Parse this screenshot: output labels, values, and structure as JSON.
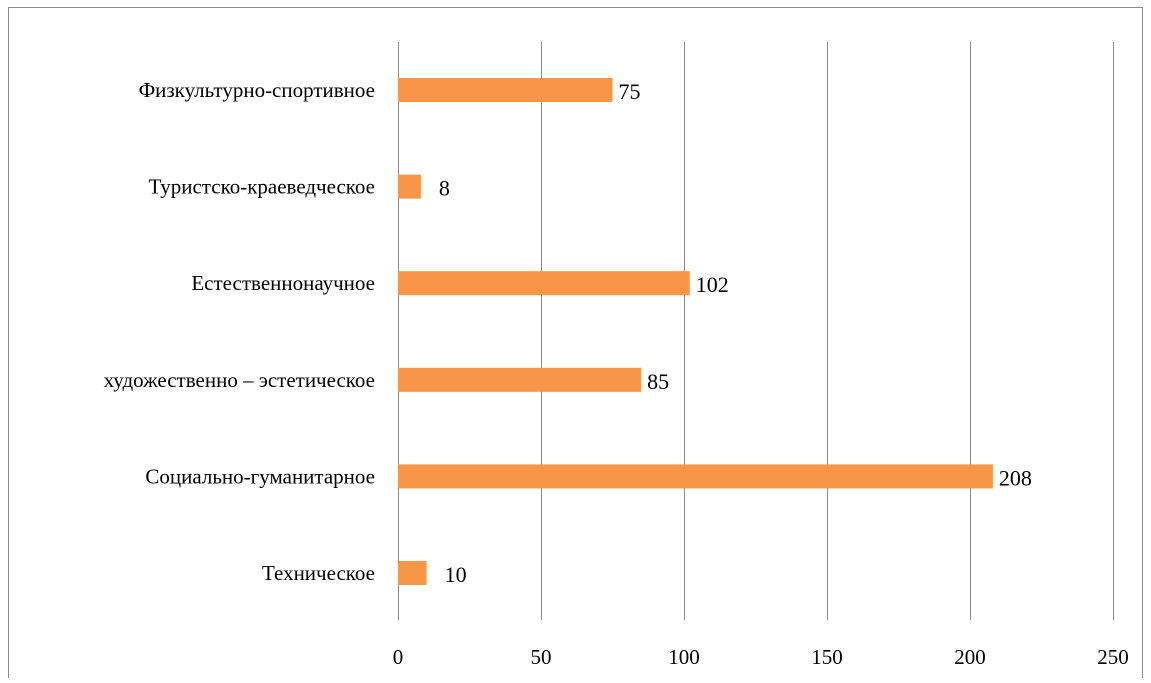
{
  "chart_data": {
    "type": "bar",
    "orientation": "horizontal",
    "title": "",
    "xlabel": "",
    "ylabel": "",
    "categories": [
      "Физкультурно-спортивное",
      "Туристско-краеведческое",
      "Естественнонаучное",
      "художественно – эстетическое",
      "Социально-гуманитарное",
      "Техническое"
    ],
    "values": [
      75,
      8,
      102,
      85,
      208,
      10
    ],
    "xlim": [
      0,
      250
    ],
    "xticks": [
      0,
      50,
      100,
      150,
      200,
      250
    ],
    "grid": true,
    "legend": "none",
    "data_labels": true,
    "colors": {
      "bar": "#F79646",
      "grid": "#8C8C8C",
      "border": "#8C8C8C"
    }
  }
}
